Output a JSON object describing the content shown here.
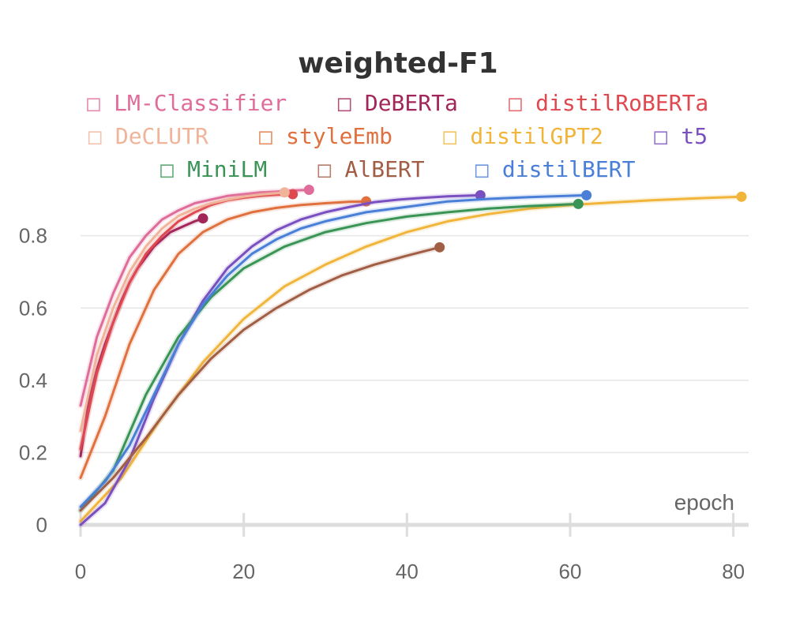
{
  "chart_data": {
    "type": "line",
    "title": "weighted-F1",
    "xlabel": "epoch",
    "ylabel": "",
    "xlim": [
      0,
      81
    ],
    "ylim": [
      0,
      0.95
    ],
    "xticks": [
      0,
      20,
      40,
      60,
      80
    ],
    "yticks": [
      0,
      0.2,
      0.4,
      0.6,
      0.8
    ],
    "ytick_labels": [
      "0",
      "0.2",
      "0.4",
      "0.6",
      "0.8"
    ],
    "grid": true,
    "legend_position": "top",
    "legend_marker": "□",
    "series": [
      {
        "name": "LM-Classifier",
        "color": "#e06c9a",
        "x": [
          0,
          2,
          4,
          6,
          8,
          10,
          12,
          14,
          16,
          18,
          20,
          22,
          24,
          26,
          28
        ],
        "y": [
          0.33,
          0.52,
          0.64,
          0.74,
          0.8,
          0.845,
          0.87,
          0.89,
          0.9,
          0.91,
          0.915,
          0.92,
          0.922,
          0.925,
          0.927
        ]
      },
      {
        "name": "DeBERTa",
        "color": "#a3265a",
        "x": [
          0,
          1,
          2,
          3,
          4,
          5,
          6,
          7,
          8,
          9,
          10,
          11,
          12,
          13,
          14,
          15
        ],
        "y": [
          0.19,
          0.34,
          0.43,
          0.5,
          0.56,
          0.62,
          0.67,
          0.71,
          0.74,
          0.77,
          0.79,
          0.81,
          0.82,
          0.83,
          0.84,
          0.848
        ]
      },
      {
        "name": "distilRoBERTa",
        "color": "#e0484f",
        "x": [
          0,
          2,
          4,
          6,
          8,
          10,
          12,
          14,
          16,
          18,
          20,
          22,
          24,
          26
        ],
        "y": [
          0.21,
          0.42,
          0.56,
          0.67,
          0.75,
          0.8,
          0.84,
          0.865,
          0.885,
          0.898,
          0.905,
          0.91,
          0.913,
          0.915
        ]
      },
      {
        "name": "DeCLUTR",
        "color": "#f0b49b",
        "x": [
          0,
          2,
          4,
          6,
          8,
          10,
          12,
          14,
          16,
          18,
          20,
          22,
          24,
          25
        ],
        "y": [
          0.26,
          0.47,
          0.6,
          0.7,
          0.77,
          0.82,
          0.855,
          0.875,
          0.89,
          0.9,
          0.908,
          0.914,
          0.918,
          0.92
        ]
      },
      {
        "name": "styleEmb",
        "color": "#e0703d",
        "x": [
          0,
          3,
          6,
          9,
          12,
          15,
          18,
          21,
          24,
          27,
          30,
          33,
          35
        ],
        "y": [
          0.13,
          0.3,
          0.5,
          0.65,
          0.75,
          0.81,
          0.845,
          0.865,
          0.877,
          0.885,
          0.89,
          0.894,
          0.895
        ]
      },
      {
        "name": "distilGPT2",
        "color": "#f0b53a",
        "x": [
          0,
          5,
          10,
          15,
          20,
          25,
          30,
          35,
          40,
          45,
          50,
          55,
          60,
          65,
          70,
          75,
          81
        ],
        "y": [
          0.01,
          0.13,
          0.3,
          0.45,
          0.57,
          0.66,
          0.72,
          0.77,
          0.81,
          0.84,
          0.86,
          0.875,
          0.885,
          0.892,
          0.898,
          0.903,
          0.908
        ]
      },
      {
        "name": "t5",
        "color": "#7a4fc0",
        "x": [
          0,
          3,
          6,
          9,
          12,
          15,
          18,
          21,
          24,
          27,
          30,
          33,
          36,
          39,
          42,
          45,
          49
        ],
        "y": [
          0.0,
          0.06,
          0.18,
          0.35,
          0.5,
          0.62,
          0.71,
          0.77,
          0.815,
          0.845,
          0.865,
          0.88,
          0.893,
          0.9,
          0.905,
          0.909,
          0.912
        ]
      },
      {
        "name": "MiniLM",
        "color": "#3a9455",
        "x": [
          0,
          4,
          8,
          12,
          16,
          20,
          25,
          30,
          35,
          40,
          45,
          50,
          55,
          61
        ],
        "y": [
          0.04,
          0.15,
          0.36,
          0.52,
          0.63,
          0.71,
          0.77,
          0.81,
          0.835,
          0.853,
          0.865,
          0.875,
          0.882,
          0.888
        ]
      },
      {
        "name": "AlBERT",
        "color": "#a15e45",
        "x": [
          0,
          4,
          8,
          12,
          16,
          20,
          24,
          28,
          32,
          36,
          40,
          44
        ],
        "y": [
          0.04,
          0.13,
          0.24,
          0.36,
          0.46,
          0.54,
          0.6,
          0.65,
          0.69,
          0.72,
          0.745,
          0.768
        ]
      },
      {
        "name": "distilBERT",
        "color": "#4a7fd8",
        "x": [
          0,
          3,
          6,
          9,
          12,
          15,
          18,
          21,
          24,
          27,
          30,
          35,
          40,
          45,
          50,
          55,
          62
        ],
        "y": [
          0.05,
          0.12,
          0.22,
          0.36,
          0.5,
          0.61,
          0.69,
          0.75,
          0.79,
          0.82,
          0.84,
          0.865,
          0.88,
          0.895,
          0.902,
          0.907,
          0.912
        ]
      }
    ]
  }
}
